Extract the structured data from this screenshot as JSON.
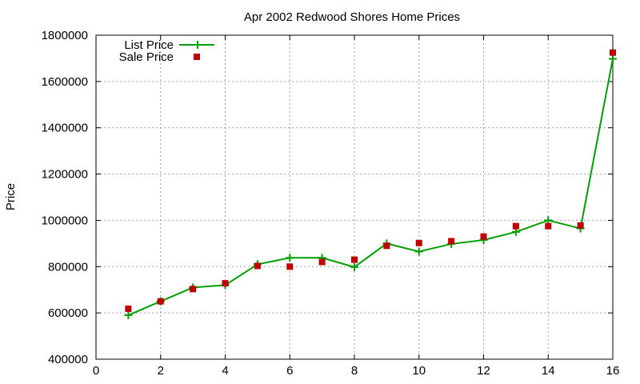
{
  "chart_data": {
    "type": "line",
    "title": "Apr 2002 Redwood Shores Home Prices",
    "xlabel": "",
    "ylabel": "Price",
    "xlim": [
      0,
      16
    ],
    "ylim": [
      400000,
      1800000
    ],
    "xticks": [
      0,
      2,
      4,
      6,
      8,
      10,
      12,
      14,
      16
    ],
    "yticks": [
      400000,
      600000,
      800000,
      1000000,
      1200000,
      1400000,
      1600000,
      1800000
    ],
    "grid": true,
    "legend_position": "top-left",
    "series": [
      {
        "name": "List Price",
        "style": "line-with-plus-markers",
        "color": "#00a000",
        "x": [
          1,
          2,
          3,
          4,
          5,
          6,
          7,
          8,
          9,
          10,
          11,
          12,
          13,
          14,
          15,
          16
        ],
        "y": [
          590000,
          650000,
          710000,
          720000,
          810000,
          838000,
          838000,
          798000,
          900000,
          865000,
          898000,
          915000,
          950000,
          1000000,
          965000,
          1698000
        ]
      },
      {
        "name": "Sale Price",
        "style": "square-markers",
        "color": "#c00000",
        "x": [
          1,
          2,
          3,
          4,
          5,
          6,
          7,
          8,
          9,
          10,
          11,
          12,
          13,
          14,
          15,
          16
        ],
        "y": [
          618000,
          650000,
          703000,
          728000,
          803000,
          800000,
          820000,
          830000,
          890000,
          902000,
          910000,
          930000,
          975000,
          975000,
          978000,
          1725000
        ]
      }
    ]
  }
}
